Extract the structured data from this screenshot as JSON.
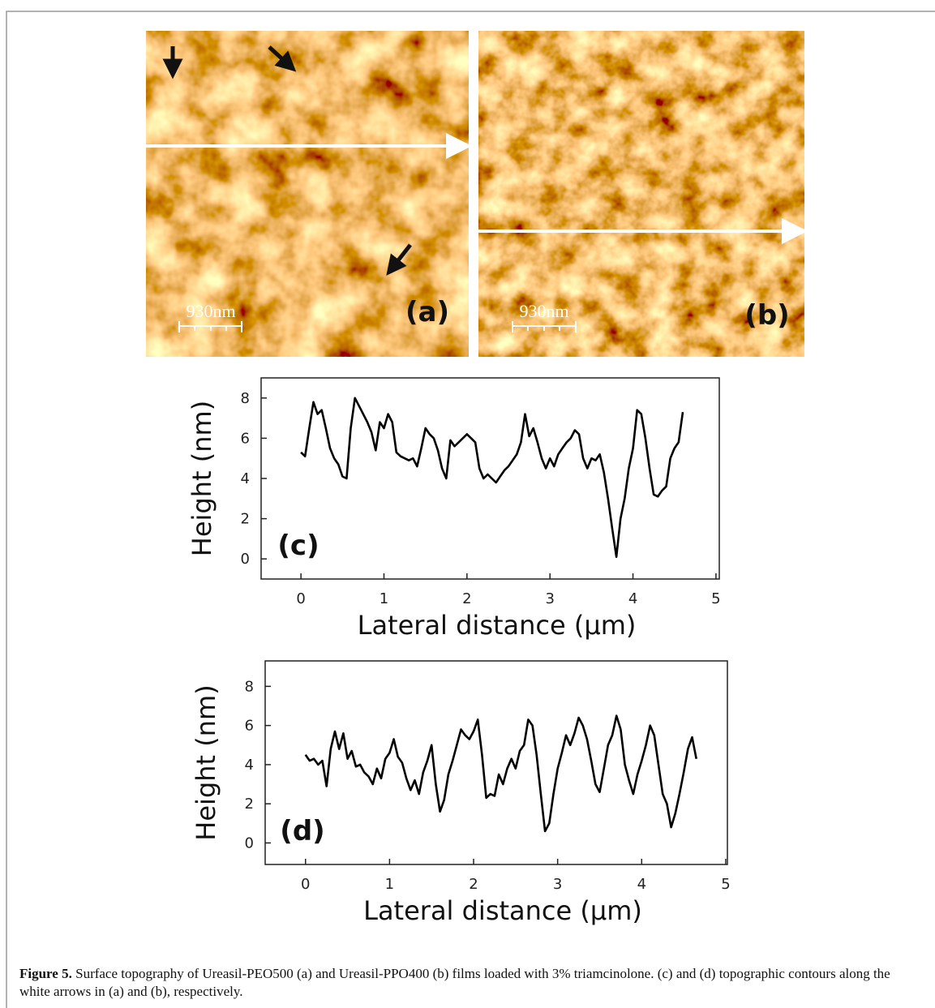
{
  "images": [
    {
      "label": "(a)",
      "scale_bar": "930nm"
    },
    {
      "label": "(b)",
      "scale_bar": "930nm"
    }
  ],
  "chart_data": [
    {
      "type": "line",
      "annotation": "(c)",
      "x_label": "Lateral distance (μm)",
      "y_label": "Height (nm)",
      "xlim": [
        -0.48,
        5.04
      ],
      "ylim": [
        -1,
        9
      ],
      "xticks": [
        0,
        1,
        2,
        3,
        4,
        5
      ],
      "yticks": [
        0,
        2,
        4,
        6,
        8
      ],
      "x": [
        0,
        0.05,
        0.1,
        0.15,
        0.2,
        0.25,
        0.3,
        0.35,
        0.4,
        0.45,
        0.5,
        0.55,
        0.6,
        0.65,
        0.7,
        0.75,
        0.8,
        0.85,
        0.9,
        0.95,
        1.0,
        1.05,
        1.1,
        1.15,
        1.2,
        1.25,
        1.3,
        1.35,
        1.4,
        1.45,
        1.5,
        1.55,
        1.6,
        1.65,
        1.7,
        1.75,
        1.8,
        1.85,
        1.9,
        1.95,
        2.0,
        2.05,
        2.1,
        2.15,
        2.2,
        2.25,
        2.3,
        2.35,
        2.4,
        2.45,
        2.5,
        2.55,
        2.6,
        2.65,
        2.7,
        2.75,
        2.8,
        2.85,
        2.9,
        2.95,
        3.0,
        3.05,
        3.1,
        3.15,
        3.2,
        3.25,
        3.3,
        3.35,
        3.4,
        3.45,
        3.5,
        3.55,
        3.6,
        3.65,
        3.7,
        3.75,
        3.8,
        3.85,
        3.9,
        3.95,
        4.0,
        4.05,
        4.1,
        4.15,
        4.2,
        4.25,
        4.3,
        4.35,
        4.4,
        4.45,
        4.5,
        4.55,
        4.6
      ],
      "series": [
        {
          "color": "#000000",
          "values": [
            5.3,
            5.1,
            6.5,
            7.8,
            7.2,
            7.4,
            6.5,
            5.5,
            5.0,
            4.7,
            4.1,
            4.0,
            6.5,
            8.0,
            7.6,
            7.2,
            6.8,
            6.3,
            5.4,
            6.8,
            6.5,
            7.2,
            6.8,
            5.3,
            5.1,
            5.0,
            4.9,
            5.0,
            4.6,
            5.5,
            6.5,
            6.2,
            6.0,
            5.4,
            4.5,
            4.0,
            5.9,
            5.6,
            5.8,
            6.0,
            6.2,
            6.0,
            5.8,
            4.5,
            4.0,
            4.2,
            4.0,
            3.8,
            4.1,
            4.4,
            4.6,
            4.9,
            5.2,
            5.8,
            7.2,
            6.1,
            6.5,
            5.8,
            5.0,
            4.5,
            5.0,
            4.6,
            5.2,
            5.5,
            5.8,
            6.0,
            6.4,
            6.2,
            5.0,
            4.5,
            5.0,
            4.9,
            5.2,
            4.3,
            3.0,
            1.5,
            0.1,
            2.0,
            3.0,
            4.5,
            5.5,
            7.4,
            7.2,
            6.0,
            4.5,
            3.2,
            3.1,
            3.4,
            3.6,
            5.0,
            5.5,
            5.8,
            7.3
          ]
        }
      ]
    },
    {
      "type": "line",
      "annotation": "(d)",
      "x_label": "Lateral distance (μm)",
      "y_label": "Height (nm)",
      "xlim": [
        -0.48,
        5.02
      ],
      "ylim": [
        -1.1,
        9.3
      ],
      "xticks": [
        0,
        1,
        2,
        3,
        4,
        5
      ],
      "yticks": [
        0,
        2,
        4,
        6,
        8
      ],
      "x": [
        0,
        0.05,
        0.1,
        0.15,
        0.2,
        0.25,
        0.3,
        0.35,
        0.4,
        0.45,
        0.5,
        0.55,
        0.6,
        0.65,
        0.7,
        0.75,
        0.8,
        0.85,
        0.9,
        0.95,
        1.0,
        1.05,
        1.1,
        1.15,
        1.2,
        1.25,
        1.3,
        1.35,
        1.4,
        1.45,
        1.5,
        1.55,
        1.6,
        1.65,
        1.7,
        1.75,
        1.8,
        1.85,
        1.9,
        1.95,
        2.0,
        2.05,
        2.1,
        2.15,
        2.2,
        2.25,
        2.3,
        2.35,
        2.4,
        2.45,
        2.5,
        2.55,
        2.6,
        2.65,
        2.7,
        2.75,
        2.8,
        2.85,
        2.9,
        2.95,
        3.0,
        3.05,
        3.1,
        3.15,
        3.2,
        3.25,
        3.3,
        3.35,
        3.4,
        3.45,
        3.5,
        3.55,
        3.6,
        3.65,
        3.7,
        3.75,
        3.8,
        3.85,
        3.9,
        3.95,
        4.0,
        4.05,
        4.1,
        4.15,
        4.2,
        4.25,
        4.3,
        4.35,
        4.4,
        4.45,
        4.5,
        4.55,
        4.6,
        4.65
      ],
      "series": [
        {
          "color": "#000000",
          "values": [
            4.5,
            4.2,
            4.3,
            4.0,
            4.2,
            2.9,
            4.8,
            5.7,
            4.8,
            5.6,
            4.3,
            4.7,
            3.9,
            4.0,
            3.6,
            3.4,
            3.0,
            3.8,
            3.3,
            4.3,
            4.6,
            5.3,
            4.4,
            4.1,
            3.3,
            2.7,
            3.2,
            2.5,
            3.6,
            4.2,
            5.0,
            3.0,
            1.6,
            2.2,
            3.5,
            4.2,
            5.0,
            5.8,
            5.5,
            5.3,
            5.7,
            6.3,
            4.5,
            2.3,
            2.5,
            2.4,
            3.5,
            3.0,
            3.8,
            4.3,
            3.8,
            4.7,
            5.0,
            6.3,
            6.0,
            4.5,
            2.5,
            0.6,
            1.0,
            2.5,
            3.8,
            4.6,
            5.5,
            5.0,
            5.6,
            6.4,
            6.0,
            5.3,
            4.2,
            3.0,
            2.6,
            3.8,
            5.0,
            5.5,
            6.5,
            5.8,
            4.0,
            3.2,
            2.5,
            3.5,
            4.2,
            5.0,
            6.0,
            5.5,
            4.0,
            2.5,
            2.0,
            0.8,
            1.5,
            2.5,
            3.6,
            4.8,
            5.4,
            4.3
          ]
        }
      ]
    }
  ],
  "caption": {
    "label": "Figure 5.",
    "text": "Surface topography of Ureasil-PEO500 (a) and Ureasil-PPO400 (b) films loaded with 3% triamcinolone. (c) and (d) topographic contours along the white arrows in (a) and (b), respectively."
  }
}
